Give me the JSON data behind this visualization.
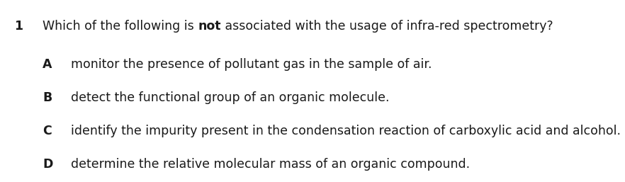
{
  "background_color": "#ffffff",
  "question_number": "1",
  "question_text_parts": [
    {
      "text": "Which of the following is ",
      "bold": false
    },
    {
      "text": "not",
      "bold": true
    },
    {
      "text": " associated with the usage of infra-red spectrometry?",
      "bold": false
    }
  ],
  "options": [
    {
      "label": "A",
      "text": "monitor the presence of pollutant gas in the sample of air."
    },
    {
      "label": "B",
      "text": "detect the functional group of an organic molecule."
    },
    {
      "label": "C",
      "text": "identify the impurity present in the condensation reaction of carboxylic acid and alcohol."
    },
    {
      "label": "D",
      "text": "determine the relative molecular mass of an organic compound."
    }
  ],
  "font_size": 12.5,
  "font_family": "Arial",
  "text_color": "#1a1a1a",
  "fig_width": 8.82,
  "fig_height": 2.57,
  "dpi": 100
}
